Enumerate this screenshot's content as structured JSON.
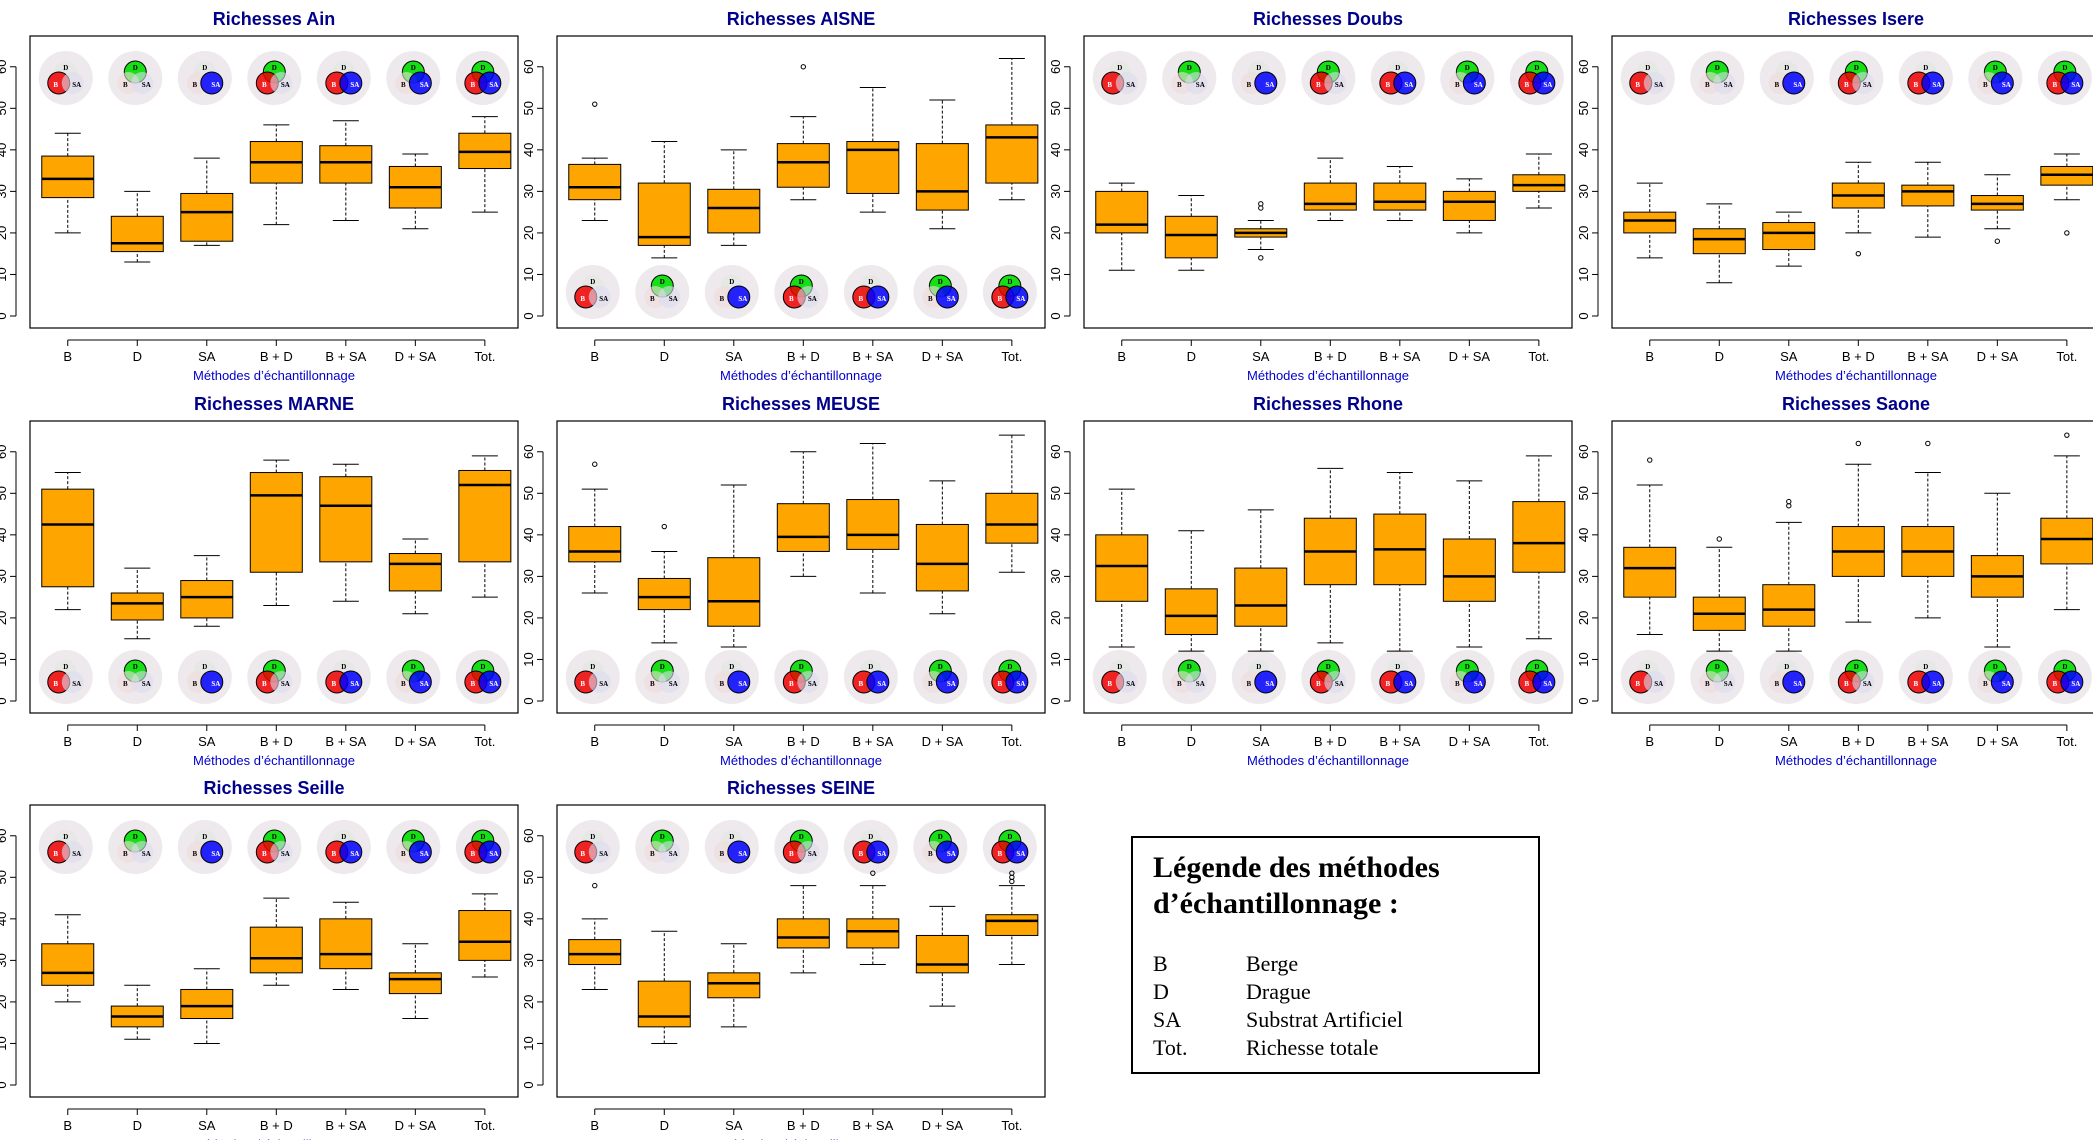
{
  "colors": {
    "box_fill": "#FFA500",
    "title_color": "#00008B",
    "xlabel_color": "#0000CD",
    "venn_d": "#00DD00",
    "venn_b": "#EE0000",
    "venn_sa": "#0000FF",
    "venn_bg": "#EDE9EC"
  },
  "legend": {
    "title": "Légende des méthodes d’échantillonnage :",
    "entries": [
      {
        "code": "B",
        "desc": "Berge"
      },
      {
        "code": "D",
        "desc": "Drague"
      },
      {
        "code": "SA",
        "desc": "Substrat Artificiel"
      },
      {
        "code": "Tot.",
        "desc": "Richesse totale"
      }
    ]
  },
  "chart_data": [
    {
      "type": "boxplot",
      "title": "Richesses  Ain",
      "xlabel": "Méthodes d’échantillonnage",
      "ylim": [
        0,
        65
      ],
      "yticks": [
        0,
        10,
        20,
        30,
        40,
        50,
        60
      ],
      "venn_position": "top",
      "categories": [
        "B",
        "D",
        "SA",
        "B + D",
        "B + SA",
        "D + SA",
        "Tot."
      ],
      "venn_labels": {
        "d": "D",
        "b": "B",
        "sa": "SA"
      },
      "boxes": [
        {
          "whisker_low": 20,
          "q1": 28.5,
          "median": 33,
          "q3": 38.5,
          "whisker_high": 44,
          "outliers": []
        },
        {
          "whisker_low": 13,
          "q1": 15.5,
          "median": 17.5,
          "q3": 24,
          "whisker_high": 30,
          "outliers": []
        },
        {
          "whisker_low": 17,
          "q1": 18,
          "median": 25,
          "q3": 29.5,
          "whisker_high": 38,
          "outliers": []
        },
        {
          "whisker_low": 22,
          "q1": 32,
          "median": 37,
          "q3": 42,
          "whisker_high": 46,
          "outliers": []
        },
        {
          "whisker_low": 23,
          "q1": 32,
          "median": 37,
          "q3": 41,
          "whisker_high": 47,
          "outliers": []
        },
        {
          "whisker_low": 21,
          "q1": 26,
          "median": 31,
          "q3": 36,
          "whisker_high": 39,
          "outliers": []
        },
        {
          "whisker_low": 25,
          "q1": 35.5,
          "median": 39.5,
          "q3": 44,
          "whisker_high": 48,
          "outliers": []
        }
      ]
    },
    {
      "type": "boxplot",
      "title": "Richesses  AISNE",
      "xlabel": "Méthodes d’échantillonnage",
      "ylim": [
        0,
        65
      ],
      "yticks": [
        0,
        10,
        20,
        30,
        40,
        50,
        60
      ],
      "venn_position": "bottom",
      "categories": [
        "B",
        "D",
        "SA",
        "B + D",
        "B + SA",
        "D + SA",
        "Tot."
      ],
      "venn_labels": {
        "d": "D",
        "b": "B",
        "sa": "SA"
      },
      "boxes": [
        {
          "whisker_low": 23,
          "q1": 28,
          "median": 31,
          "q3": 36.5,
          "whisker_high": 38,
          "outliers": [
            51
          ]
        },
        {
          "whisker_low": 14,
          "q1": 17,
          "median": 19,
          "q3": 32,
          "whisker_high": 42,
          "outliers": []
        },
        {
          "whisker_low": 17,
          "q1": 20,
          "median": 26,
          "q3": 30.5,
          "whisker_high": 40,
          "outliers": []
        },
        {
          "whisker_low": 28,
          "q1": 31,
          "median": 37,
          "q3": 41.5,
          "whisker_high": 48,
          "outliers": [
            60
          ]
        },
        {
          "whisker_low": 25,
          "q1": 29.5,
          "median": 40,
          "q3": 42,
          "whisker_high": 55,
          "outliers": []
        },
        {
          "whisker_low": 21,
          "q1": 25.5,
          "median": 30,
          "q3": 41.5,
          "whisker_high": 52,
          "outliers": []
        },
        {
          "whisker_low": 28,
          "q1": 32,
          "median": 43,
          "q3": 46,
          "whisker_high": 62,
          "outliers": []
        }
      ]
    },
    {
      "type": "boxplot",
      "title": "Richesses  Doubs",
      "xlabel": "Méthodes d’échantillonnage",
      "ylim": [
        0,
        65
      ],
      "yticks": [
        0,
        10,
        20,
        30,
        40,
        50,
        60
      ],
      "venn_position": "top",
      "categories": [
        "B",
        "D",
        "SA",
        "B + D",
        "B + SA",
        "D + SA",
        "Tot."
      ],
      "venn_labels": {
        "d": "D",
        "b": "B",
        "sa": "SA"
      },
      "boxes": [
        {
          "whisker_low": 11,
          "q1": 20,
          "median": 22,
          "q3": 30,
          "whisker_high": 32,
          "outliers": []
        },
        {
          "whisker_low": 11,
          "q1": 14,
          "median": 19.5,
          "q3": 24,
          "whisker_high": 29,
          "outliers": []
        },
        {
          "whisker_low": 16,
          "q1": 19,
          "median": 20,
          "q3": 21,
          "whisker_high": 23,
          "outliers": [
            14,
            26,
            27
          ]
        },
        {
          "whisker_low": 23,
          "q1": 25.5,
          "median": 27,
          "q3": 32,
          "whisker_high": 38,
          "outliers": []
        },
        {
          "whisker_low": 23,
          "q1": 25.5,
          "median": 27.5,
          "q3": 32,
          "whisker_high": 36,
          "outliers": []
        },
        {
          "whisker_low": 20,
          "q1": 23,
          "median": 27.5,
          "q3": 30,
          "whisker_high": 33,
          "outliers": []
        },
        {
          "whisker_low": 26,
          "q1": 30,
          "median": 31.5,
          "q3": 34,
          "whisker_high": 39,
          "outliers": []
        }
      ]
    },
    {
      "type": "boxplot",
      "title": "Richesses  Isere",
      "xlabel": "Méthodes d’échantillonnage",
      "ylim": [
        0,
        65
      ],
      "yticks": [
        0,
        10,
        20,
        30,
        40,
        50,
        60
      ],
      "venn_position": "top",
      "categories": [
        "B",
        "D",
        "SA",
        "B + D",
        "B + SA",
        "D + SA",
        "Tot."
      ],
      "venn_labels": {
        "d": "D",
        "b": "B",
        "sa": "SA"
      },
      "boxes": [
        {
          "whisker_low": 14,
          "q1": 20,
          "median": 23,
          "q3": 25,
          "whisker_high": 32,
          "outliers": []
        },
        {
          "whisker_low": 8,
          "q1": 15,
          "median": 18.5,
          "q3": 21,
          "whisker_high": 27,
          "outliers": []
        },
        {
          "whisker_low": 12,
          "q1": 16,
          "median": 20,
          "q3": 22.5,
          "whisker_high": 25,
          "outliers": []
        },
        {
          "whisker_low": 20,
          "q1": 26,
          "median": 29,
          "q3": 32,
          "whisker_high": 37,
          "outliers": [
            15
          ]
        },
        {
          "whisker_low": 19,
          "q1": 26.5,
          "median": 30,
          "q3": 31.5,
          "whisker_high": 37,
          "outliers": []
        },
        {
          "whisker_low": 21,
          "q1": 25.5,
          "median": 27,
          "q3": 29,
          "whisker_high": 34,
          "outliers": [
            18
          ]
        },
        {
          "whisker_low": 28,
          "q1": 31.5,
          "median": 34,
          "q3": 36,
          "whisker_high": 39,
          "outliers": [
            20
          ]
        }
      ]
    },
    {
      "type": "boxplot",
      "title": "Richesses  MARNE",
      "xlabel": "Méthodes d’échantillonnage",
      "ylim": [
        0,
        65
      ],
      "yticks": [
        0,
        10,
        20,
        30,
        40,
        50,
        60
      ],
      "venn_position": "bottom",
      "categories": [
        "B",
        "D",
        "SA",
        "B + D",
        "B + SA",
        "D + SA",
        "Tot."
      ],
      "venn_labels": {
        "d": "D",
        "b": "B",
        "sa": "SA"
      },
      "boxes": [
        {
          "whisker_low": 22,
          "q1": 27.5,
          "median": 42.5,
          "q3": 51,
          "whisker_high": 55,
          "outliers": []
        },
        {
          "whisker_low": 15,
          "q1": 19.5,
          "median": 23.5,
          "q3": 26,
          "whisker_high": 32,
          "outliers": []
        },
        {
          "whisker_low": 18,
          "q1": 20,
          "median": 25,
          "q3": 29,
          "whisker_high": 35,
          "outliers": []
        },
        {
          "whisker_low": 23,
          "q1": 31,
          "median": 49.5,
          "q3": 55,
          "whisker_high": 58,
          "outliers": []
        },
        {
          "whisker_low": 24,
          "q1": 33.5,
          "median": 47,
          "q3": 54,
          "whisker_high": 57,
          "outliers": []
        },
        {
          "whisker_low": 21,
          "q1": 26.5,
          "median": 33,
          "q3": 35.5,
          "whisker_high": 39,
          "outliers": []
        },
        {
          "whisker_low": 25,
          "q1": 33.5,
          "median": 52,
          "q3": 55.5,
          "whisker_high": 59,
          "outliers": []
        }
      ]
    },
    {
      "type": "boxplot",
      "title": "Richesses  MEUSE",
      "xlabel": "Méthodes d’échantillonnage",
      "ylim": [
        0,
        65
      ],
      "yticks": [
        0,
        10,
        20,
        30,
        40,
        50,
        60
      ],
      "venn_position": "bottom",
      "categories": [
        "B",
        "D",
        "SA",
        "B + D",
        "B + SA",
        "D + SA",
        "Tot."
      ],
      "venn_labels": {
        "d": "D",
        "b": "B",
        "sa": "SA"
      },
      "boxes": [
        {
          "whisker_low": 26,
          "q1": 33.5,
          "median": 36,
          "q3": 42,
          "whisker_high": 51,
          "outliers": [
            57
          ]
        },
        {
          "whisker_low": 14,
          "q1": 22,
          "median": 25,
          "q3": 29.5,
          "whisker_high": 36,
          "outliers": [
            42
          ]
        },
        {
          "whisker_low": 13,
          "q1": 18,
          "median": 24,
          "q3": 34.5,
          "whisker_high": 52,
          "outliers": []
        },
        {
          "whisker_low": 30,
          "q1": 36,
          "median": 39.5,
          "q3": 47.5,
          "whisker_high": 60,
          "outliers": []
        },
        {
          "whisker_low": 26,
          "q1": 36.5,
          "median": 40,
          "q3": 48.5,
          "whisker_high": 62,
          "outliers": []
        },
        {
          "whisker_low": 21,
          "q1": 26.5,
          "median": 33,
          "q3": 42.5,
          "whisker_high": 53,
          "outliers": []
        },
        {
          "whisker_low": 31,
          "q1": 38,
          "median": 42.5,
          "q3": 50,
          "whisker_high": 64,
          "outliers": []
        }
      ]
    },
    {
      "type": "boxplot",
      "title": "Richesses  Rhone",
      "xlabel": "Méthodes d’échantillonnage",
      "ylim": [
        0,
        65
      ],
      "yticks": [
        0,
        10,
        20,
        30,
        40,
        50,
        60
      ],
      "venn_position": "bottom",
      "categories": [
        "B",
        "D",
        "SA",
        "B + D",
        "B + SA",
        "D + SA",
        "Tot."
      ],
      "venn_labels": {
        "d": "D",
        "b": "B",
        "sa": "SA"
      },
      "boxes": [
        {
          "whisker_low": 13,
          "q1": 24,
          "median": 32.5,
          "q3": 40,
          "whisker_high": 51,
          "outliers": []
        },
        {
          "whisker_low": 12,
          "q1": 16,
          "median": 20.5,
          "q3": 27,
          "whisker_high": 41,
          "outliers": []
        },
        {
          "whisker_low": 12,
          "q1": 18,
          "median": 23,
          "q3": 32,
          "whisker_high": 46,
          "outliers": []
        },
        {
          "whisker_low": 14,
          "q1": 28,
          "median": 36,
          "q3": 44,
          "whisker_high": 56,
          "outliers": []
        },
        {
          "whisker_low": 12,
          "q1": 28,
          "median": 36.5,
          "q3": 45,
          "whisker_high": 55,
          "outliers": []
        },
        {
          "whisker_low": 13,
          "q1": 24,
          "median": 30,
          "q3": 39,
          "whisker_high": 53,
          "outliers": []
        },
        {
          "whisker_low": 15,
          "q1": 31,
          "median": 38,
          "q3": 48,
          "whisker_high": 59,
          "outliers": []
        }
      ]
    },
    {
      "type": "boxplot",
      "title": "Richesses  Saone",
      "xlabel": "Méthodes d’échantillonnage",
      "ylim": [
        0,
        65
      ],
      "yticks": [
        0,
        10,
        20,
        30,
        40,
        50,
        60
      ],
      "venn_position": "bottom",
      "categories": [
        "B",
        "D",
        "SA",
        "B + D",
        "B + SA",
        "D + SA",
        "Tot."
      ],
      "venn_labels": {
        "d": "D",
        "b": "B",
        "sa": "SA"
      },
      "boxes": [
        {
          "whisker_low": 16,
          "q1": 25,
          "median": 32,
          "q3": 37,
          "whisker_high": 52,
          "outliers": [
            58
          ]
        },
        {
          "whisker_low": 12,
          "q1": 17,
          "median": 21,
          "q3": 25,
          "whisker_high": 37,
          "outliers": [
            39
          ]
        },
        {
          "whisker_low": 12,
          "q1": 18,
          "median": 22,
          "q3": 28,
          "whisker_high": 43,
          "outliers": [
            47,
            48
          ]
        },
        {
          "whisker_low": 19,
          "q1": 30,
          "median": 36,
          "q3": 42,
          "whisker_high": 57,
          "outliers": [
            62
          ]
        },
        {
          "whisker_low": 20,
          "q1": 30,
          "median": 36,
          "q3": 42,
          "whisker_high": 55,
          "outliers": [
            62
          ]
        },
        {
          "whisker_low": 13,
          "q1": 25,
          "median": 30,
          "q3": 35,
          "whisker_high": 50,
          "outliers": []
        },
        {
          "whisker_low": 22,
          "q1": 33,
          "median": 39,
          "q3": 44,
          "whisker_high": 59,
          "outliers": [
            64
          ]
        }
      ]
    },
    {
      "type": "boxplot",
      "title": "Richesses  Seille",
      "xlabel": "Méthodes d’échantillonnage",
      "ylim": [
        0,
        65
      ],
      "yticks": [
        0,
        10,
        20,
        30,
        40,
        50,
        60
      ],
      "venn_position": "top",
      "categories": [
        "B",
        "D",
        "SA",
        "B + D",
        "B + SA",
        "D + SA",
        "Tot."
      ],
      "venn_labels": {
        "d": "D",
        "b": "B",
        "sa": "SA"
      },
      "boxes": [
        {
          "whisker_low": 20,
          "q1": 24,
          "median": 27,
          "q3": 34,
          "whisker_high": 41,
          "outliers": []
        },
        {
          "whisker_low": 11,
          "q1": 14,
          "median": 16.5,
          "q3": 19,
          "whisker_high": 24,
          "outliers": []
        },
        {
          "whisker_low": 10,
          "q1": 16,
          "median": 19,
          "q3": 23,
          "whisker_high": 28,
          "outliers": []
        },
        {
          "whisker_low": 24,
          "q1": 27,
          "median": 30.5,
          "q3": 38,
          "whisker_high": 45,
          "outliers": []
        },
        {
          "whisker_low": 23,
          "q1": 28,
          "median": 31.5,
          "q3": 40,
          "whisker_high": 44,
          "outliers": []
        },
        {
          "whisker_low": 16,
          "q1": 22,
          "median": 25.5,
          "q3": 27,
          "whisker_high": 34,
          "outliers": []
        },
        {
          "whisker_low": 26,
          "q1": 30,
          "median": 34.5,
          "q3": 42,
          "whisker_high": 46,
          "outliers": []
        }
      ]
    },
    {
      "type": "boxplot",
      "title": "Richesses  SEINE",
      "xlabel": "Méthodes d’échantillonnage",
      "ylim": [
        0,
        65
      ],
      "yticks": [
        0,
        10,
        20,
        30,
        40,
        50,
        60
      ],
      "venn_position": "top",
      "categories": [
        "B",
        "D",
        "SA",
        "B + D",
        "B + SA",
        "D + SA",
        "Tot."
      ],
      "venn_labels": {
        "d": "D",
        "b": "B",
        "sa": "SA"
      },
      "boxes": [
        {
          "whisker_low": 23,
          "q1": 29,
          "median": 31.5,
          "q3": 35,
          "whisker_high": 40,
          "outliers": [
            48
          ]
        },
        {
          "whisker_low": 10,
          "q1": 14,
          "median": 16.5,
          "q3": 25,
          "whisker_high": 37,
          "outliers": []
        },
        {
          "whisker_low": 14,
          "q1": 21,
          "median": 24.5,
          "q3": 27,
          "whisker_high": 34,
          "outliers": []
        },
        {
          "whisker_low": 27,
          "q1": 33,
          "median": 35.5,
          "q3": 40,
          "whisker_high": 48,
          "outliers": []
        },
        {
          "whisker_low": 29,
          "q1": 33,
          "median": 37,
          "q3": 40,
          "whisker_high": 48,
          "outliers": [
            51
          ]
        },
        {
          "whisker_low": 19,
          "q1": 27,
          "median": 29,
          "q3": 36,
          "whisker_high": 43,
          "outliers": []
        },
        {
          "whisker_low": 29,
          "q1": 36,
          "median": 39.5,
          "q3": 41,
          "whisker_high": 48,
          "outliers": [
            49,
            50,
            51
          ]
        }
      ]
    }
  ]
}
